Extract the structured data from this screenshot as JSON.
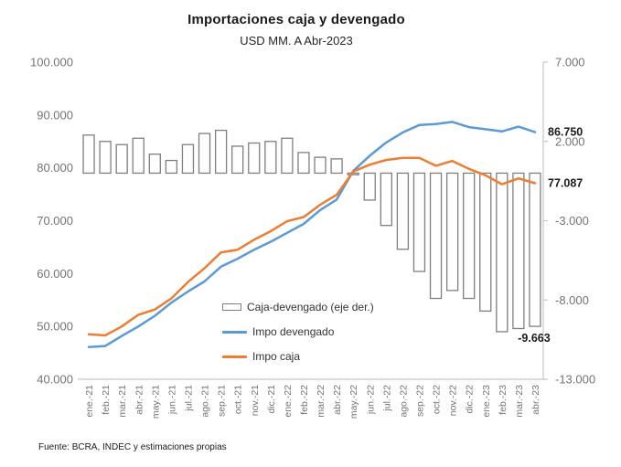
{
  "header": {
    "title": "Importaciones caja y devengado",
    "subtitle": "USD MM. A Abr-2023"
  },
  "footer": {
    "source": "Fuente: BCRA, INDEC y estimaciones propias"
  },
  "legend": {
    "items": [
      {
        "label": "Caja-devengado (eje der.)",
        "swatch": "bar-outline"
      },
      {
        "label": "Impo devengado",
        "swatch": "line",
        "color": "#5B9BD5"
      },
      {
        "label": "Impo caja",
        "swatch": "line",
        "color": "#ED7D31"
      }
    ]
  },
  "chart_data": {
    "type": "combo",
    "title": "Importaciones caja y devengado",
    "subtitle": "USD MM. A Abr-2023",
    "grid": "off",
    "legend_position": "inside-lower-center",
    "categories": [
      "ene.-21",
      "feb.-21",
      "mar.-21",
      "abr.-21",
      "may.-21",
      "jun.-21",
      "jul.-21",
      "ago.-21",
      "sep.-21",
      "oct.-21",
      "nov.-21",
      "dic.-21",
      "ene.-22",
      "feb.-22",
      "mar.-22",
      "abr.-22",
      "may.-22",
      "jun.-22",
      "jul.-22",
      "ago.-22",
      "sep.-22",
      "oct.-22",
      "nov.-22",
      "dic.-22",
      "ene.-23",
      "feb.-23",
      "mar.-23",
      "abr.-23"
    ],
    "series": [
      {
        "name": "Caja-devengado (eje der.)",
        "type": "bar",
        "axis": "right",
        "fill": "#FFFFFF",
        "outline": "#7F7F7F",
        "values": [
          2400,
          2000,
          1800,
          2200,
          1200,
          800,
          1800,
          2500,
          2700,
          1700,
          1900,
          2000,
          2200,
          1300,
          1000,
          900,
          -100,
          -1700,
          -3300,
          -4800,
          -6200,
          -7900,
          -7400,
          -7900,
          -8700,
          -10000,
          -9800,
          -9663
        ]
      },
      {
        "name": "Impo devengado",
        "type": "line",
        "axis": "left",
        "color": "#5B9BD5",
        "values": [
          46100,
          46300,
          48200,
          50000,
          52000,
          54500,
          56600,
          58500,
          61300,
          62800,
          64500,
          66000,
          67700,
          69400,
          72000,
          74000,
          79400,
          82300,
          84800,
          86700,
          88100,
          88300,
          88700,
          87700,
          87300,
          86900,
          87800,
          86750
        ]
      },
      {
        "name": "Impo caja",
        "type": "line",
        "axis": "left",
        "color": "#ED7D31",
        "values": [
          48500,
          48300,
          50000,
          52200,
          53200,
          55300,
          58400,
          61000,
          64000,
          64500,
          66400,
          68000,
          69900,
          70700,
          73000,
          74900,
          79300,
          80600,
          81500,
          81900,
          81900,
          80400,
          81300,
          79800,
          78600,
          76900,
          78000,
          77087
        ]
      }
    ],
    "axes": {
      "left": {
        "min": 40000,
        "max": 100000,
        "step": 10000,
        "tick_labels": [
          "100.000",
          "90.000",
          "80.000",
          "70.000",
          "60.000",
          "50.000",
          "40.000"
        ]
      },
      "right": {
        "min": -13000,
        "max": 7000,
        "step": 5000,
        "tick_labels": [
          "7.000",
          "2.000",
          "-3.000",
          "-8.000",
          "-13.000"
        ]
      }
    },
    "data_labels": [
      {
        "text": "86.750",
        "series": "Impo devengado",
        "point": "abr.-23",
        "value": 86750
      },
      {
        "text": "77.087",
        "series": "Impo caja",
        "point": "abr.-23",
        "value": 77087
      },
      {
        "text": "-9.663",
        "series": "Caja-devengado (eje der.)",
        "point": "abr.-23",
        "value": -9663
      }
    ]
  }
}
